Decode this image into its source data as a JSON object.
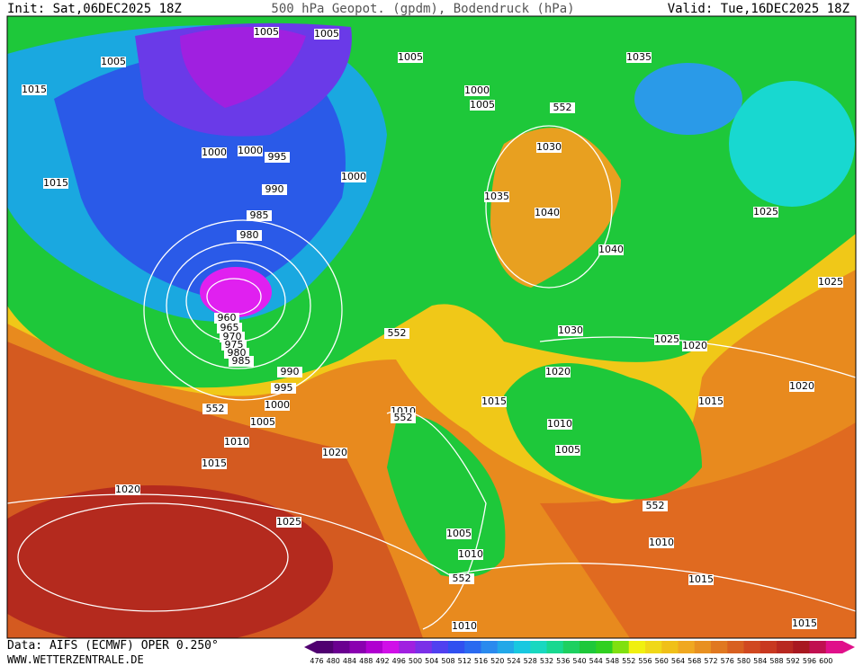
{
  "header": {
    "init": "Init: Sat,06DEC2025 18Z",
    "title": "500 hPa Geopot. (gpdm), Bodendruck (hPa)",
    "valid": "Valid: Tue,16DEC2025 18Z"
  },
  "footer": {
    "data": "Data: AIFS (ECMWF) OPER 0.250°",
    "site": "WWW.WETTERZENTRALE.DE"
  },
  "colorbar": {
    "labels": [
      476,
      480,
      484,
      488,
      492,
      496,
      500,
      504,
      508,
      512,
      516,
      520,
      524,
      528,
      532,
      536,
      540,
      544,
      548,
      552,
      556,
      560,
      564,
      568,
      572,
      576,
      580,
      584,
      588,
      592,
      596,
      600
    ]
  },
  "map": {
    "isobar_labels": [
      1005,
      1005,
      1005,
      1005,
      1015,
      1000,
      1005,
      552,
      1035,
      1030,
      1000,
      1000,
      995,
      1015,
      990,
      1000,
      1035,
      1040,
      985,
      980,
      1025,
      1040,
      1025,
      960,
      965,
      970,
      975,
      980,
      985,
      552,
      1030,
      1025,
      1020,
      990,
      995,
      1020,
      1015,
      1015,
      1020,
      1010,
      552,
      552,
      1000,
      1005,
      1010,
      1010,
      1005,
      1015,
      1020,
      1020,
      552,
      1025,
      1005,
      1010,
      1010,
      552,
      1015,
      1010,
      1015
    ]
  }
}
